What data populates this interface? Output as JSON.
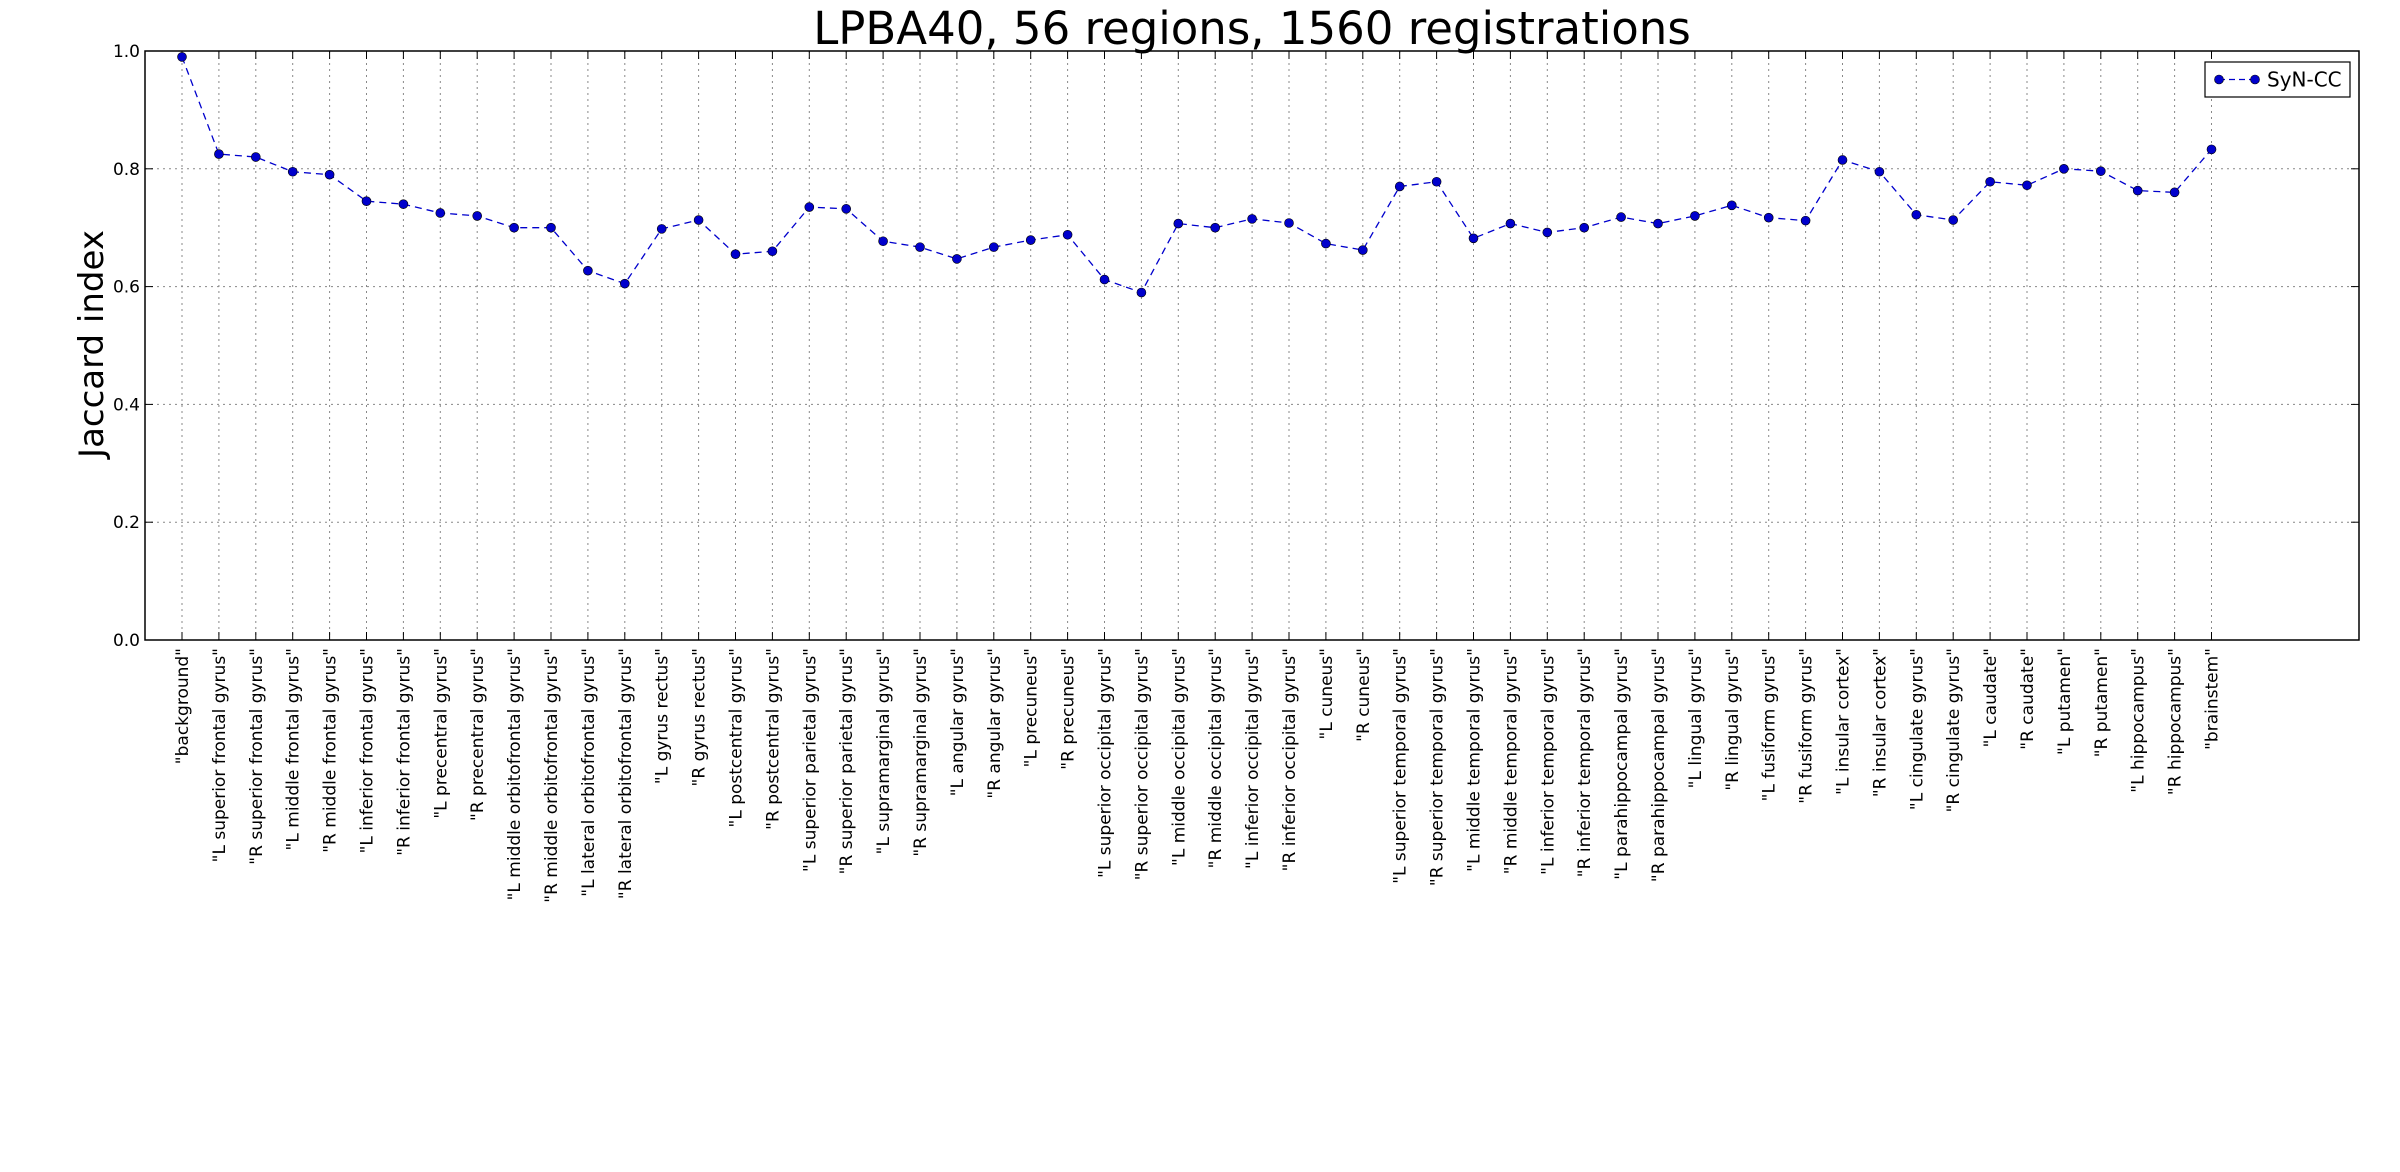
{
  "chart_data": {
    "type": "line",
    "title": "LPBA40, 56 regions, 1560 registrations",
    "xlabel": "",
    "ylabel": "Jaccard index",
    "ylim": [
      0.0,
      1.0
    ],
    "yticks": [
      "0.0",
      "0.2",
      "0.4",
      "0.6",
      "0.8",
      "1.0"
    ],
    "grid": true,
    "legend_position": "top-right",
    "categories": [
      "\"background\"",
      "\"L superior frontal gyrus\"",
      "\"R superior frontal gyrus\"",
      "\"L middle frontal gyrus\"",
      "\"R middle frontal gyrus\"",
      "\"L inferior frontal gyrus\"",
      "\"R inferior frontal gyrus\"",
      "\"L precentral gyrus\"",
      "\"R precentral gyrus\"",
      "\"L middle orbitofrontal gyrus\"",
      "\"R middle orbitofrontal gyrus\"",
      "\"L lateral orbitofrontal gyrus\"",
      "\"R lateral orbitofrontal gyrus\"",
      "\"L gyrus rectus\"",
      "\"R gyrus rectus\"",
      "\"L postcentral gyrus\"",
      "\"R postcentral gyrus\"",
      "\"L superior parietal gyrus\"",
      "\"R superior parietal gyrus\"",
      "\"L supramarginal gyrus\"",
      "\"R supramarginal gyrus\"",
      "\"L angular gyrus\"",
      "\"R angular gyrus\"",
      "\"L precuneus\"",
      "\"R precuneus\"",
      "\"L superior occipital gyrus\"",
      "\"R superior occipital gyrus\"",
      "\"L middle occipital gyrus\"",
      "\"R middle occipital gyrus\"",
      "\"L inferior occipital gyrus\"",
      "\"R inferior occipital gyrus\"",
      "\"L cuneus\"",
      "\"R cuneus\"",
      "\"L superior temporal gyrus\"",
      "\"R superior temporal gyrus\"",
      "\"L middle temporal gyrus\"",
      "\"R middle temporal gyrus\"",
      "\"L inferior temporal gyrus\"",
      "\"R inferior temporal gyrus\"",
      "\"L parahippocampal gyrus\"",
      "\"R parahippocampal gyrus\"",
      "\"L lingual gyrus\"",
      "\"R lingual gyrus\"",
      "\"L fusiform gyrus\"",
      "\"R fusiform gyrus\"",
      "\"L insular cortex\"",
      "\"R insular cortex\"",
      "\"L cingulate gyrus\"",
      "\"R cingulate gyrus\"",
      "\"L caudate\"",
      "\"R caudate\"",
      "\"L putamen\"",
      "\"R putamen\"",
      "\"L hippocampus\"",
      "\"R hippocampus\"",
      "\"brainstem\""
    ],
    "series": [
      {
        "name": "SyN-CC",
        "color": "#0000cc",
        "line_style": "dashed",
        "marker": "circle",
        "values": [
          0.99,
          0.825,
          0.82,
          0.795,
          0.79,
          0.745,
          0.74,
          0.725,
          0.72,
          0.7,
          0.7,
          0.627,
          0.605,
          0.698,
          0.713,
          0.655,
          0.66,
          0.735,
          0.732,
          0.677,
          0.667,
          0.647,
          0.667,
          0.679,
          0.688,
          0.612,
          0.59,
          0.707,
          0.7,
          0.715,
          0.708,
          0.673,
          0.662,
          0.77,
          0.778,
          0.682,
          0.707,
          0.692,
          0.7,
          0.718,
          0.707,
          0.72,
          0.738,
          0.717,
          0.712,
          0.815,
          0.795,
          0.722,
          0.713,
          0.778,
          0.772,
          0.8,
          0.796,
          0.763,
          0.76,
          0.833
        ]
      }
    ]
  }
}
